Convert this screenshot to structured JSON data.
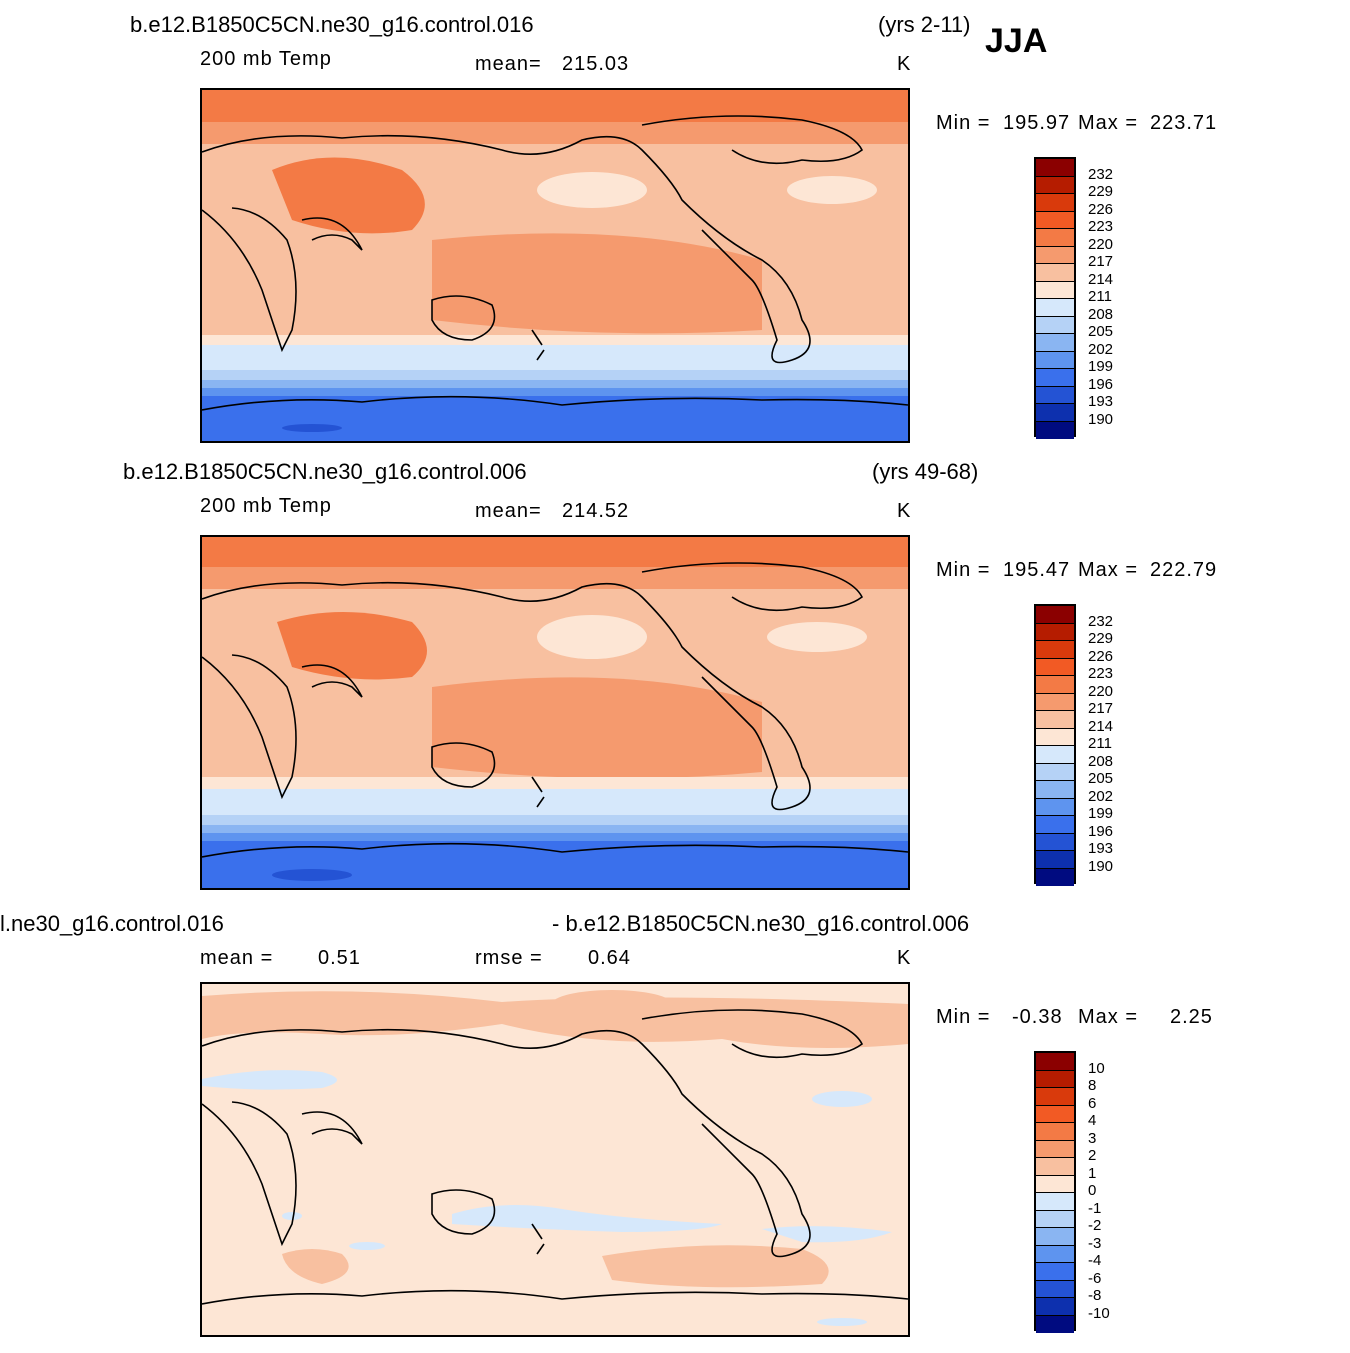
{
  "season": "JJA",
  "panels": [
    {
      "case": "b.e12.B1850C5CN.ne30_g16.control.016",
      "years": "(yrs 2-11)",
      "variable": "200 mb Temp",
      "stat1_label": "mean=",
      "stat1_value": "215.03",
      "units": "K",
      "min_label": "Min =",
      "min_value": "195.97",
      "max_label": "Max =",
      "max_value": "223.71",
      "levels": [
        "232",
        "229",
        "226",
        "223",
        "220",
        "217",
        "214",
        "211",
        "208",
        "205",
        "202",
        "199",
        "196",
        "193",
        "190"
      ]
    },
    {
      "case": "b.e12.B1850C5CN.ne30_g16.control.006",
      "years": "(yrs 49-68)",
      "variable": "200 mb Temp",
      "stat1_label": "mean=",
      "stat1_value": "214.52",
      "units": "K",
      "min_label": "Min =",
      "min_value": "195.47",
      "max_label": "Max =",
      "max_value": "222.79",
      "levels": [
        "232",
        "229",
        "226",
        "223",
        "220",
        "217",
        "214",
        "211",
        "208",
        "205",
        "202",
        "199",
        "196",
        "193",
        "190"
      ]
    },
    {
      "case_left": "l.ne30_g16.control.016",
      "case_right": "- b.e12.B1850C5CN.ne30_g16.control.006",
      "stat1_label": "mean =",
      "stat1_value": "0.51",
      "stat2_label": "rmse =",
      "stat2_value": "0.64",
      "units": "K",
      "min_label": "Min =",
      "min_value": "-0.38",
      "max_label": "Max =",
      "max_value": "2.25",
      "levels": [
        "10",
        "8",
        "6",
        "4",
        "3",
        "2",
        "1",
        "0",
        "-1",
        "-2",
        "-3",
        "-4",
        "-6",
        "-8",
        "-10"
      ]
    }
  ],
  "colors": {
    "palette": [
      "#8b0000",
      "#b51c00",
      "#d93a0c",
      "#f25a24",
      "#f37a45",
      "#f59a6e",
      "#f8c0a0",
      "#fde6d5",
      "#d6e8fb",
      "#b5d2f6",
      "#8ab5f2",
      "#5e94ef",
      "#3a70ec",
      "#2453d4",
      "#0d30ae",
      "#000b80"
    ]
  }
}
